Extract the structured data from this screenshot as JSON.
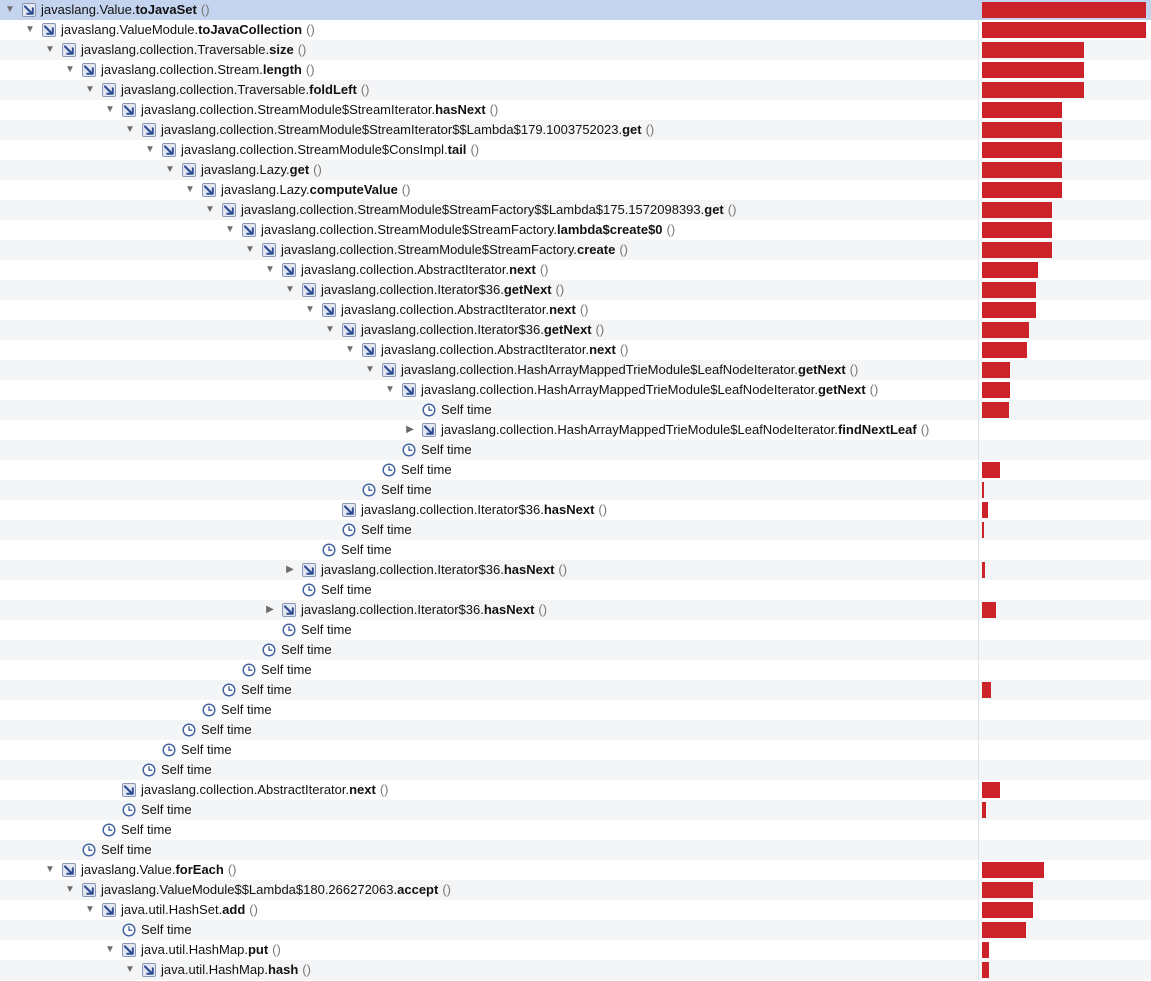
{
  "icons": {
    "expanded": "triangle-down-icon",
    "collapsed": "triangle-right-icon",
    "method": "method-call-arrow-icon",
    "self": "clock-icon"
  },
  "colors": {
    "bar": "#cc2229",
    "selection": "#c4d3ee",
    "alt_row": "#f4f5f7"
  },
  "rows": [
    {
      "d": 0,
      "toggle": "expanded",
      "icon": "method",
      "pkg": "javaslang.Value.",
      "method": "toJavaSet",
      "args": "()",
      "bar": 0.948,
      "selected": true
    },
    {
      "d": 1,
      "toggle": "expanded",
      "icon": "method",
      "pkg": "javaslang.ValueModule.",
      "method": "toJavaCollection",
      "args": "()",
      "bar": 0.948
    },
    {
      "d": 2,
      "toggle": "expanded",
      "icon": "method",
      "pkg": "javaslang.collection.Traversable.",
      "method": "size",
      "args": "()",
      "bar": 0.59
    },
    {
      "d": 3,
      "toggle": "expanded",
      "icon": "method",
      "pkg": "javaslang.collection.Stream.",
      "method": "length",
      "args": "()",
      "bar": 0.59
    },
    {
      "d": 4,
      "toggle": "expanded",
      "icon": "method",
      "pkg": "javaslang.collection.Traversable.",
      "method": "foldLeft",
      "args": "()",
      "bar": 0.59
    },
    {
      "d": 5,
      "toggle": "expanded",
      "icon": "method",
      "pkg": "javaslang.collection.StreamModule$StreamIterator.",
      "method": "hasNext",
      "args": "()",
      "bar": 0.465
    },
    {
      "d": 6,
      "toggle": "expanded",
      "icon": "method",
      "pkg": "javaslang.collection.StreamModule$StreamIterator$$Lambda$179.1003752023.",
      "method": "get",
      "args": "()",
      "bar": 0.465
    },
    {
      "d": 7,
      "toggle": "expanded",
      "icon": "method",
      "pkg": "javaslang.collection.StreamModule$ConsImpl.",
      "method": "tail",
      "args": "()",
      "bar": 0.465
    },
    {
      "d": 8,
      "toggle": "expanded",
      "icon": "method",
      "pkg": "javaslang.Lazy.",
      "method": "get",
      "args": "()",
      "bar": 0.465
    },
    {
      "d": 9,
      "toggle": "expanded",
      "icon": "method",
      "pkg": "javaslang.Lazy.",
      "method": "computeValue",
      "args": "()",
      "bar": 0.465
    },
    {
      "d": 10,
      "toggle": "expanded",
      "icon": "method",
      "pkg": "javaslang.collection.StreamModule$StreamFactory$$Lambda$175.1572098393.",
      "method": "get",
      "args": "()",
      "bar": 0.405
    },
    {
      "d": 11,
      "toggle": "expanded",
      "icon": "method",
      "pkg": "javaslang.collection.StreamModule$StreamFactory.",
      "method": "lambda$create$0",
      "args": "()",
      "bar": 0.405
    },
    {
      "d": 12,
      "toggle": "expanded",
      "icon": "method",
      "pkg": "javaslang.collection.StreamModule$StreamFactory.",
      "method": "create",
      "args": "()",
      "bar": 0.405
    },
    {
      "d": 13,
      "toggle": "expanded",
      "icon": "method",
      "pkg": "javaslang.collection.AbstractIterator.",
      "method": "next",
      "args": "()",
      "bar": 0.325
    },
    {
      "d": 14,
      "toggle": "expanded",
      "icon": "method",
      "pkg": "javaslang.collection.Iterator$36.",
      "method": "getNext",
      "args": "()",
      "bar": 0.312
    },
    {
      "d": 15,
      "toggle": "expanded",
      "icon": "method",
      "pkg": "javaslang.collection.AbstractIterator.",
      "method": "next",
      "args": "()",
      "bar": 0.312
    },
    {
      "d": 16,
      "toggle": "expanded",
      "icon": "method",
      "pkg": "javaslang.collection.Iterator$36.",
      "method": "getNext",
      "args": "()",
      "bar": 0.272
    },
    {
      "d": 17,
      "toggle": "expanded",
      "icon": "method",
      "pkg": "javaslang.collection.AbstractIterator.",
      "method": "next",
      "args": "()",
      "bar": 0.26
    },
    {
      "d": 18,
      "toggle": "expanded",
      "icon": "method",
      "pkg": "javaslang.collection.HashArrayMappedTrieModule$LeafNodeIterator.",
      "method": "getNext",
      "args": "()",
      "bar": 0.162
    },
    {
      "d": 19,
      "toggle": "expanded",
      "icon": "method",
      "pkg": "javaslang.collection.HashArrayMappedTrieModule$LeafNodeIterator.",
      "method": "getNext",
      "args": "()",
      "bar": 0.162
    },
    {
      "d": 20,
      "toggle": "none",
      "icon": "self",
      "self": "Self time",
      "bar": 0.156
    },
    {
      "d": 20,
      "toggle": "collapsed",
      "icon": "method",
      "pkg": "javaslang.collection.HashArrayMappedTrieModule$LeafNodeIterator.",
      "method": "findNextLeaf",
      "args": "()",
      "bar": 0
    },
    {
      "d": 19,
      "toggle": "none",
      "icon": "self",
      "self": "Self time",
      "bar": 0
    },
    {
      "d": 18,
      "toggle": "none",
      "icon": "self",
      "self": "Self time",
      "bar": 0.104
    },
    {
      "d": 17,
      "toggle": "none",
      "icon": "self",
      "self": "Self time",
      "bar": 0.012
    },
    {
      "d": 16,
      "toggle": "none",
      "icon": "method",
      "pkg": "javaslang.collection.Iterator$36.",
      "method": "hasNext",
      "args": "()",
      "bar": 0.035
    },
    {
      "d": 16,
      "toggle": "none",
      "icon": "self",
      "self": "Self time",
      "bar": 0.006
    },
    {
      "d": 15,
      "toggle": "none",
      "icon": "self",
      "self": "Self time",
      "bar": 0
    },
    {
      "d": 14,
      "toggle": "collapsed",
      "icon": "method",
      "pkg": "javaslang.collection.Iterator$36.",
      "method": "hasNext",
      "args": "()",
      "bar": 0.017
    },
    {
      "d": 14,
      "toggle": "none",
      "icon": "self",
      "self": "Self time",
      "bar": 0
    },
    {
      "d": 13,
      "toggle": "collapsed",
      "icon": "method",
      "pkg": "javaslang.collection.Iterator$36.",
      "method": "hasNext",
      "args": "()",
      "bar": 0.08
    },
    {
      "d": 13,
      "toggle": "none",
      "icon": "self",
      "self": "Self time",
      "bar": 0
    },
    {
      "d": 12,
      "toggle": "none",
      "icon": "self",
      "self": "Self time",
      "bar": 0
    },
    {
      "d": 11,
      "toggle": "none",
      "icon": "self",
      "self": "Self time",
      "bar": 0
    },
    {
      "d": 10,
      "toggle": "none",
      "icon": "self",
      "self": "Self time",
      "bar": 0.052
    },
    {
      "d": 9,
      "toggle": "none",
      "icon": "self",
      "self": "Self time",
      "bar": 0
    },
    {
      "d": 8,
      "toggle": "none",
      "icon": "self",
      "self": "Self time",
      "bar": 0
    },
    {
      "d": 7,
      "toggle": "none",
      "icon": "self",
      "self": "Self time",
      "bar": 0
    },
    {
      "d": 6,
      "toggle": "none",
      "icon": "self",
      "self": "Self time",
      "bar": 0
    },
    {
      "d": 5,
      "toggle": "none",
      "icon": "method",
      "pkg": "javaslang.collection.AbstractIterator.",
      "method": "next",
      "args": "()",
      "bar": 0.104
    },
    {
      "d": 5,
      "toggle": "none",
      "icon": "self",
      "self": "Self time",
      "bar": 0.023
    },
    {
      "d": 4,
      "toggle": "none",
      "icon": "self",
      "self": "Self time",
      "bar": 0
    },
    {
      "d": 3,
      "toggle": "none",
      "icon": "self",
      "self": "Self time",
      "bar": 0
    },
    {
      "d": 2,
      "toggle": "expanded",
      "icon": "method",
      "pkg": "javaslang.Value.",
      "method": "forEach",
      "args": "()",
      "bar": 0.36
    },
    {
      "d": 3,
      "toggle": "expanded",
      "icon": "method",
      "pkg": "javaslang.ValueModule$$Lambda$180.266272063.",
      "method": "accept",
      "args": "()",
      "bar": 0.295
    },
    {
      "d": 4,
      "toggle": "expanded",
      "icon": "method",
      "pkg": "java.util.HashSet.",
      "method": "add",
      "args": "()",
      "bar": 0.295
    },
    {
      "d": 5,
      "toggle": "none",
      "icon": "self",
      "self": "Self time",
      "bar": 0.255
    },
    {
      "d": 5,
      "toggle": "expanded",
      "icon": "method",
      "pkg": "java.util.HashMap.",
      "method": "put",
      "args": "()",
      "bar": 0.04
    },
    {
      "d": 6,
      "toggle": "expanded",
      "icon": "method",
      "pkg": "java.util.HashMap.",
      "method": "hash",
      "args": "()",
      "bar": 0.04
    }
  ]
}
